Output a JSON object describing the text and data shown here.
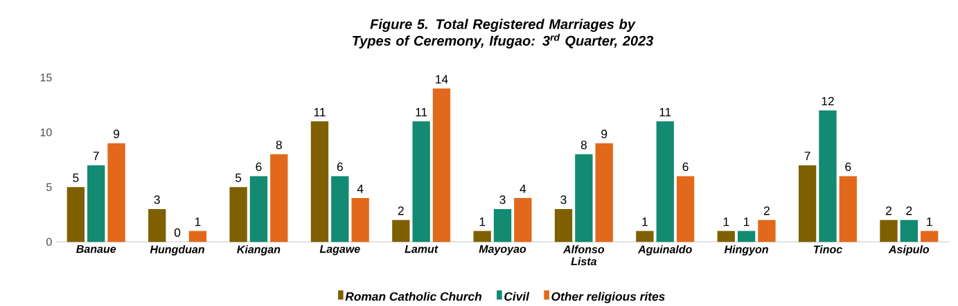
{
  "chart_data": {
    "type": "bar",
    "title": "Figure 5. Total Registered Marriages by Types of Ceremony, Ifugao: 3$^{rd}$ Quarter, 2023",
    "categories": [
      "Banaue",
      "Hungduan",
      "Kiangan",
      "Lagawe",
      "Lamut",
      "Mayoyao",
      "Alfonso Lista",
      "Aguinaldo",
      "Hingyon",
      "Tinoc",
      "Asipulo"
    ],
    "series": [
      {
        "name": "Roman Catholic Church",
        "color": "#7f6000",
        "values": [
          5,
          3,
          5,
          11,
          2,
          1,
          3,
          1,
          1,
          7,
          2
        ]
      },
      {
        "name": "Civil",
        "color": "#138a72",
        "values": [
          7,
          0,
          6,
          6,
          11,
          3,
          8,
          11,
          1,
          12,
          2
        ]
      },
      {
        "name": "Other religious rites",
        "color": "#e2691b",
        "values": [
          9,
          1,
          8,
          4,
          14,
          4,
          9,
          6,
          2,
          6,
          1
        ]
      }
    ],
    "ylim": [
      0,
      15
    ],
    "yticks": [
      0,
      5,
      10,
      15
    ],
    "data_labels": true,
    "legend": "bottom"
  }
}
